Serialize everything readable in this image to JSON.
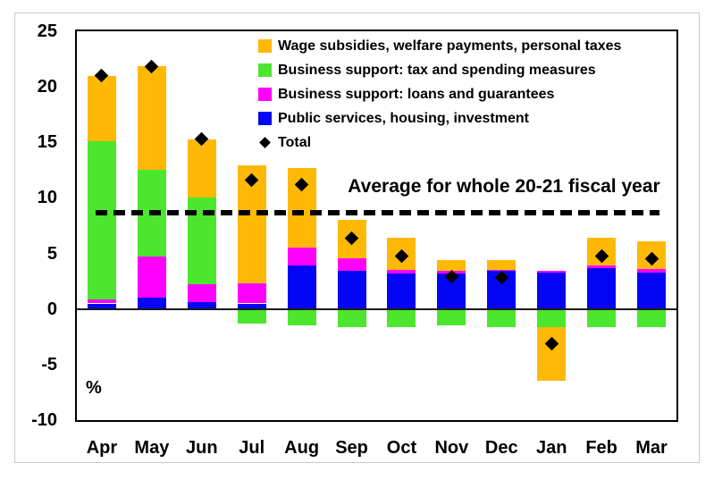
{
  "chart_data": {
    "type": "bar",
    "stacked": true,
    "title": "",
    "xlabel": "",
    "ylabel": "%",
    "ylim": [
      -10,
      25
    ],
    "yticks": [
      25,
      20,
      15,
      10,
      5,
      0,
      -5,
      -10
    ],
    "grid": false,
    "legend_position": "top-right-inside",
    "categories": [
      "Apr",
      "May",
      "Jun",
      "Jul",
      "Aug",
      "Sep",
      "Oct",
      "Nov",
      "Dec",
      "Jan",
      "Feb",
      "Mar"
    ],
    "series": [
      {
        "name": "Public services, housing, investment",
        "color": "#0505F5",
        "values": [
          0.5,
          1.0,
          0.6,
          0.5,
          3.9,
          3.4,
          3.2,
          3.2,
          3.4,
          3.3,
          3.7,
          3.3
        ]
      },
      {
        "name": "Business support: loans and guarantees",
        "color": "#FF00FF",
        "values": [
          0.4,
          3.7,
          1.6,
          1.8,
          1.6,
          1.2,
          0.3,
          0.2,
          0.1,
          0.1,
          0.2,
          0.3
        ]
      },
      {
        "name": "Business support: tax and spending measures",
        "color": "#4CE62E",
        "values": [
          14.2,
          7.8,
          7.8,
          -1.3,
          -1.5,
          -1.6,
          -1.6,
          -1.5,
          -1.6,
          -1.6,
          -1.6,
          -1.6
        ]
      },
      {
        "name": "Wage subsidies, welfare payments, personal taxes",
        "color": "#FFB905",
        "values": [
          5.9,
          9.4,
          5.3,
          10.6,
          7.2,
          3.4,
          2.9,
          1.0,
          0.9,
          -4.9,
          2.5,
          2.5
        ]
      }
    ],
    "total_markers": {
      "name": "Total",
      "marker": "diamond",
      "color": "#000000",
      "values": [
        21.0,
        21.8,
        15.3,
        11.6,
        11.2,
        6.4,
        4.8,
        2.9,
        2.8,
        -3.1,
        4.8,
        4.5
      ]
    },
    "average_line": {
      "value": 8.7,
      "label": "Average for whole 20-21 fiscal year",
      "style": "dashed",
      "color": "#000000"
    }
  },
  "legend": {
    "items": [
      {
        "label": "Wage subsidies, welfare payments, personal taxes",
        "color": "#FFB905",
        "marker": "square"
      },
      {
        "label": "Business support: tax and spending measures",
        "color": "#4CE62E",
        "marker": "square"
      },
      {
        "label": "Business support: loans and guarantees",
        "color": "#FF00FF",
        "marker": "square"
      },
      {
        "label": "Public services, housing, investment",
        "color": "#0505F5",
        "marker": "square"
      },
      {
        "label": "Total",
        "color": "#000000",
        "marker": "diamond"
      }
    ]
  },
  "annotation": {
    "average_text": "Average for whole 20-21 fiscal year"
  },
  "axis": {
    "unit_label": "%"
  }
}
